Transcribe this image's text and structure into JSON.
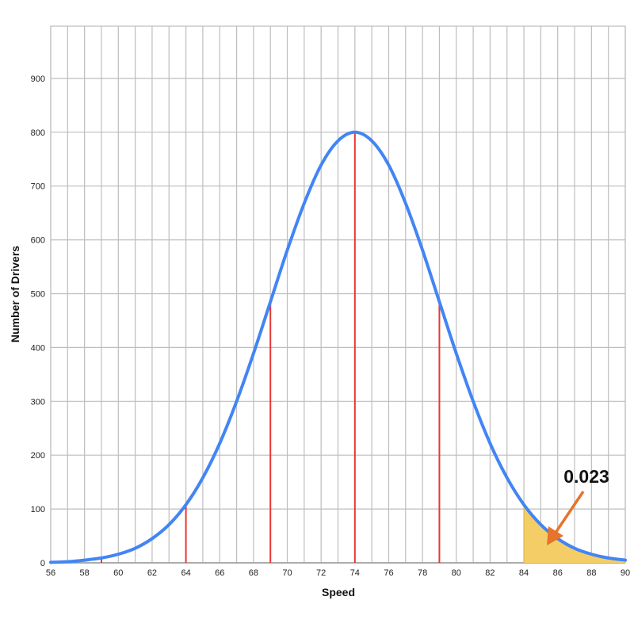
{
  "chart_data": {
    "type": "line",
    "title": "",
    "xlabel": "Speed",
    "ylabel": "Number of Drivers",
    "xlim": [
      56,
      90
    ],
    "ylim": [
      0,
      1000
    ],
    "x_ticks": [
      56,
      58,
      60,
      62,
      64,
      66,
      68,
      70,
      72,
      74,
      76,
      78,
      80,
      82,
      84,
      86,
      88,
      90
    ],
    "y_ticks": [
      0,
      100,
      200,
      300,
      400,
      500,
      600,
      700,
      800,
      900
    ],
    "grid": true,
    "x_grid_step": 1,
    "series": [
      {
        "x": [
          56,
          57,
          58,
          59,
          60,
          61,
          62,
          63,
          64,
          65,
          66,
          67,
          68,
          69,
          70,
          71,
          72,
          73,
          74,
          75,
          76,
          77,
          78,
          79,
          80,
          81,
          82,
          83,
          84,
          85,
          86,
          87,
          88,
          89,
          90
        ],
        "y": [
          1,
          2,
          5,
          9,
          16,
          27,
          45,
          71,
          108,
          158,
          222,
          300,
          389,
          485,
          581,
          668,
          739,
          784,
          800,
          784,
          739,
          668,
          581,
          485,
          389,
          300,
          222,
          158,
          108,
          71,
          45,
          27,
          16,
          9,
          5
        ],
        "color": "#4285f4"
      }
    ],
    "vertical_markers": {
      "x": [
        59,
        64,
        69,
        74,
        79
      ],
      "color": "#e53935"
    },
    "shaded_region": {
      "x_from": 84,
      "x_to": 90,
      "color": "#f5cd66"
    },
    "annotation": {
      "text": "0.023",
      "arrow_color": "#e8732a",
      "points_to_x": 85.3
    }
  }
}
